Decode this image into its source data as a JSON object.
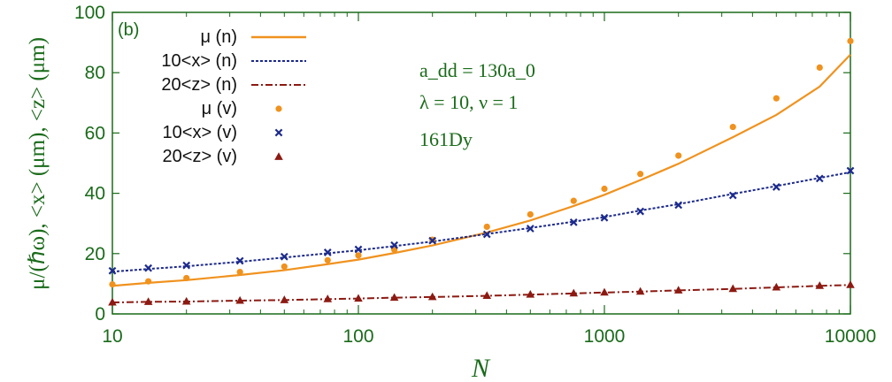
{
  "chart_data": {
    "type": "line",
    "panel_label": "(b)",
    "xlabel": "N",
    "ylabel": "μ/(ℏω), <x> (μm), <z> (μm)",
    "x_scale": "log",
    "xlim": [
      10,
      10000
    ],
    "ylim": [
      0,
      100
    ],
    "x_ticks": [
      10,
      100,
      1000,
      10000
    ],
    "x_tick_labels": [
      "10",
      "100",
      "1000",
      "10000"
    ],
    "y_ticks": [
      0,
      20,
      40,
      60,
      80,
      100
    ],
    "y_tick_labels": [
      "0",
      "20",
      "40",
      "60",
      "80",
      "100"
    ],
    "annotations": {
      "add": "a_dd = 130a_0",
      "lambda_nu": "λ = 10, ν = 1",
      "isotope": "161Dy"
    },
    "x": [
      10,
      14,
      20,
      33,
      50,
      75,
      100,
      140,
      200,
      333,
      500,
      750,
      1000,
      1400,
      2000,
      3330,
      5000,
      7500,
      10000
    ],
    "series": [
      {
        "name": "μ (n)",
        "kind": "line",
        "color": "#f0921e",
        "dash": "solid",
        "values": [
          9.3,
          10.3,
          11.2,
          12.9,
          14.5,
          16.5,
          18.0,
          20.2,
          22.7,
          27.0,
          31.0,
          35.8,
          39.5,
          44.4,
          49.8,
          58.6,
          66.0,
          75.4,
          86.0
        ]
      },
      {
        "name": "10<x> (n)",
        "kind": "line",
        "color": "#1c2a8c",
        "dash": "dotted",
        "values": [
          14.0,
          14.9,
          15.8,
          17.3,
          18.7,
          20.1,
          21.1,
          22.5,
          24.0,
          26.5,
          28.5,
          30.6,
          32.1,
          34.3,
          36.4,
          39.8,
          42.4,
          45.1,
          47.0
        ]
      },
      {
        "name": "20<z> (n)",
        "kind": "line",
        "color": "#8c1a12",
        "dash": "dashdot",
        "values": [
          3.8,
          4.0,
          4.1,
          4.4,
          4.6,
          4.9,
          5.1,
          5.4,
          5.6,
          6.0,
          6.4,
          6.8,
          7.1,
          7.4,
          7.8,
          8.3,
          8.8,
          9.3,
          9.6
        ]
      },
      {
        "name": "μ (v)",
        "kind": "points",
        "marker": "circle",
        "color": "#f0921e",
        "values": [
          9.8,
          10.8,
          11.9,
          13.9,
          15.7,
          17.8,
          19.4,
          21.3,
          24.6,
          28.9,
          33.0,
          37.5,
          41.5,
          46.4,
          52.5,
          62.0,
          71.5,
          81.7,
          90.5
        ]
      },
      {
        "name": "10<x> (v)",
        "kind": "points",
        "marker": "cross",
        "color": "#1c2a8c",
        "values": [
          14.3,
          15.2,
          16.1,
          17.6,
          19.0,
          20.4,
          21.4,
          22.8,
          24.3,
          26.4,
          28.3,
          30.4,
          31.9,
          34.0,
          36.1,
          39.3,
          42.1,
          44.9,
          47.5
        ]
      },
      {
        "name": "20<z> (v)",
        "kind": "points",
        "marker": "triangle",
        "color": "#8c1a12",
        "values": [
          3.9,
          4.1,
          4.2,
          4.5,
          4.7,
          5.0,
          5.2,
          5.5,
          5.7,
          6.1,
          6.5,
          6.9,
          7.2,
          7.5,
          7.9,
          8.4,
          8.9,
          9.4,
          9.7
        ]
      }
    ]
  }
}
